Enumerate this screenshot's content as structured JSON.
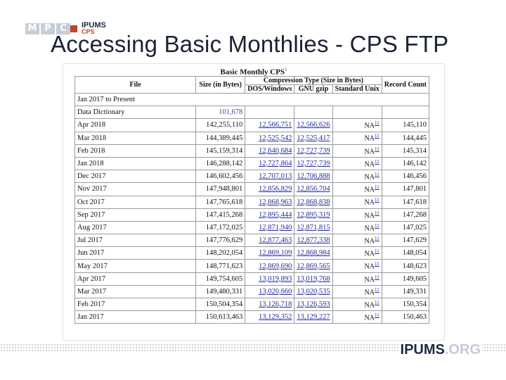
{
  "slide": {
    "title": "Accessing Basic Monthlies - CPS FTP",
    "logo_top_mpc": [
      "M",
      "P",
      "C"
    ],
    "logo_top_ipums": "IPUMS",
    "logo_top_cps": "CPS",
    "logo_bottom_main": "IPUMS",
    "logo_bottom_org": ".ORG"
  },
  "table": {
    "caption": "Basic Monthly CPS",
    "caption_note": "1",
    "headers": {
      "file": "File",
      "size": "Size (in Bytes)",
      "compression": "Compression Type (Size in Bytes)",
      "record": "Record Count",
      "dos": "DOS/Windows",
      "gnu": "GNU gzip",
      "unix": "Standard Unix"
    },
    "section_label": "Jan 2017 to Present",
    "data_dictionary": {
      "label": "Data Dictionary",
      "size": "101,678"
    },
    "na_label": "NA",
    "na_note": "11",
    "rows": [
      {
        "file": "Apr 2018",
        "size": "142,255,110",
        "dos": "12,566,751",
        "gnu": "12,566,626",
        "count": "145,110"
      },
      {
        "file": "Mar 2018",
        "size": "144,389,445",
        "dos": "12,525,542",
        "gnu": "12,525,417",
        "count": "144,445"
      },
      {
        "file": "Feb 2018",
        "size": "145,159,314",
        "dos": "12,640,684",
        "gnu": "12,727,739",
        "count": "145,314"
      },
      {
        "file": "Jan 2018",
        "size": "146,288,142",
        "dos": "12,727,864",
        "gnu": "12,727,739",
        "count": "146,142"
      },
      {
        "file": "Dec 2017",
        "size": "146,602,456",
        "dos": "12,707,013",
        "gnu": "12,706,888",
        "count": "146,456"
      },
      {
        "file": "Nov 2017",
        "size": "147,948,801",
        "dos": "12,856,829",
        "gnu": "12,856,704",
        "count": "147,801"
      },
      {
        "file": "Oct 2017",
        "size": "147,765,618",
        "dos": "12,868,963",
        "gnu": "12,868,838",
        "count": "147,618"
      },
      {
        "file": "Sep 2017",
        "size": "147,415,268",
        "dos": "12,895,444",
        "gnu": "12,895,319",
        "count": "147,268"
      },
      {
        "file": "Aug 2017",
        "size": "147,172,025",
        "dos": "12,871,940",
        "gnu": "12,871,815",
        "count": "147,025"
      },
      {
        "file": "Jul 2017",
        "size": "147,776,629",
        "dos": "12,877,463",
        "gnu": "12,877,338",
        "count": "147,629"
      },
      {
        "file": "Jun 2017",
        "size": "148,202,054",
        "dos": "12,869,109",
        "gnu": "12,868,984",
        "count": "148,054"
      },
      {
        "file": "May 2017",
        "size": "148,771,623",
        "dos": "12,869,690",
        "gnu": "12,869,565",
        "count": "148,623"
      },
      {
        "file": "Apr 2017",
        "size": "149,754,605",
        "dos": "13,019,893",
        "gnu": "13,019,768",
        "count": "149,605"
      },
      {
        "file": "Mar 2017",
        "size": "149,480,331",
        "dos": "13,020,660",
        "gnu": "13,020,535",
        "count": "149,331"
      },
      {
        "file": "Feb 2017",
        "size": "150,504,354",
        "dos": "13,126,718",
        "gnu": "13,126,593",
        "count": "150,354"
      },
      {
        "file": "Jan 2017",
        "size": "150,613,463",
        "dos": "13,129,352",
        "gnu": "13,129,227",
        "count": "150,463"
      }
    ]
  },
  "colors": {
    "title": "#1b2235",
    "link": "#1d2a9c",
    "accent": "#c4412a",
    "logo_gray": "#c8cdd6"
  }
}
